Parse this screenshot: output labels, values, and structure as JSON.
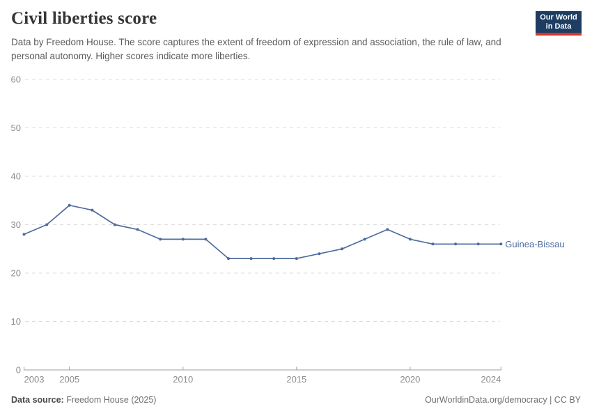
{
  "header": {
    "title": "Civil liberties score",
    "subtitle": "Data by Freedom House. The score captures the extent of freedom of expression and association, the rule of law, and personal autonomy. Higher scores indicate more liberties.",
    "logo": {
      "line1": "Our World",
      "line2": "in Data",
      "bg_color": "#1d3d63",
      "accent_color": "#d8352a"
    }
  },
  "chart_data": {
    "type": "line",
    "title": "Civil liberties score",
    "x": [
      2003,
      2004,
      2005,
      2006,
      2007,
      2008,
      2009,
      2010,
      2011,
      2012,
      2013,
      2014,
      2015,
      2016,
      2017,
      2018,
      2019,
      2020,
      2021,
      2022,
      2023,
      2024
    ],
    "series": [
      {
        "name": "Guinea-Bissau",
        "color": "#4c6b9e",
        "values": [
          28,
          30,
          34,
          33,
          30,
          29,
          27,
          27,
          27,
          23,
          23,
          23,
          23,
          24,
          25,
          27,
          29,
          27,
          26,
          26,
          26,
          26
        ]
      }
    ],
    "xlim": [
      2003,
      2024
    ],
    "ylim": [
      0,
      60
    ],
    "x_ticks": [
      2003,
      2005,
      2010,
      2015,
      2020,
      2024
    ],
    "y_ticks": [
      0,
      10,
      20,
      30,
      40,
      50,
      60
    ],
    "grid": "horizontal-dashed",
    "legend_position": "end-of-line-label"
  },
  "footer": {
    "source_label": "Data source:",
    "source_value": "Freedom House (2025)",
    "credit": "OurWorldinData.org/democracy | CC BY"
  }
}
